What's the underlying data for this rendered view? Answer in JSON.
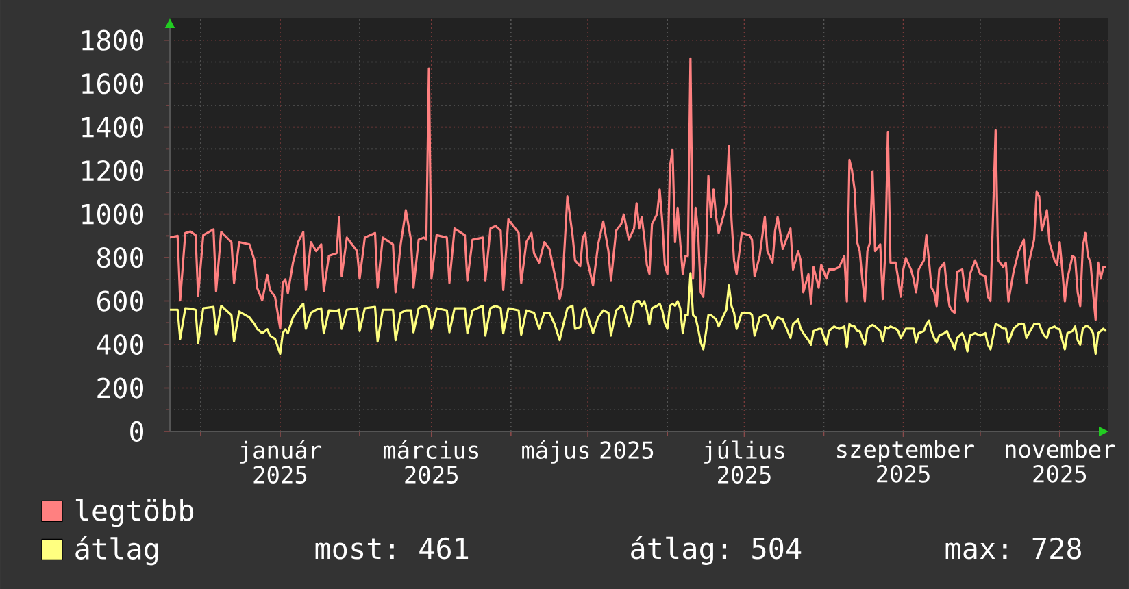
{
  "chart_data": {
    "type": "line",
    "x": [
      "2024-11-19",
      "2024-11-22",
      "2024-11-23",
      "2024-11-25",
      "2024-11-27",
      "2024-11-29",
      "2024-11-30",
      "2024-12-02",
      "2024-12-06",
      "2024-12-07",
      "2024-12-09",
      "2024-12-13",
      "2024-12-14",
      "2024-12-16",
      "2024-12-20",
      "2024-12-22",
      "2024-12-23",
      "2024-12-25",
      "2024-12-27",
      "2024-12-28",
      "2024-12-30",
      "2025-01-01",
      "2025-01-02",
      "2025-01-03",
      "2025-01-04",
      "2025-01-06",
      "2025-01-08",
      "2025-01-10",
      "2025-01-11",
      "2025-01-13",
      "2025-01-15",
      "2025-01-17",
      "2025-01-18",
      "2025-01-20",
      "2025-01-23",
      "2025-01-24",
      "2025-01-25",
      "2025-01-27",
      "2025-01-31",
      "2025-02-01",
      "2025-02-03",
      "2025-02-07",
      "2025-02-08",
      "2025-02-10",
      "2025-02-14",
      "2025-02-15",
      "2025-02-17",
      "2025-02-19",
      "2025-02-21",
      "2025-02-22",
      "2025-02-24",
      "2025-02-26",
      "2025-02-27",
      "2025-02-28",
      "2025-03-01",
      "2025-03-03",
      "2025-03-07",
      "2025-03-08",
      "2025-03-10",
      "2025-03-14",
      "2025-03-15",
      "2025-03-17",
      "2025-03-21",
      "2025-03-22",
      "2025-03-24",
      "2025-03-26",
      "2025-03-28",
      "2025-03-29",
      "2025-03-31",
      "2025-04-04",
      "2025-04-05",
      "2025-04-07",
      "2025-04-09",
      "2025-04-10",
      "2025-04-12",
      "2025-04-14",
      "2025-04-16",
      "2025-04-18",
      "2025-04-20",
      "2025-04-21",
      "2025-04-23",
      "2025-04-25",
      "2025-04-26",
      "2025-04-28",
      "2025-04-29",
      "2025-04-30",
      "2025-05-01",
      "2025-05-03",
      "2025-05-05",
      "2025-05-07",
      "2025-05-09",
      "2025-05-10",
      "2025-05-12",
      "2025-05-14",
      "2025-05-15",
      "2025-05-17",
      "2025-05-18",
      "2025-05-19",
      "2025-05-20",
      "2025-05-21",
      "2025-05-22",
      "2025-05-23",
      "2025-05-24",
      "2025-05-25",
      "2025-05-26",
      "2025-05-28",
      "2025-05-29",
      "2025-05-30",
      "2025-05-31",
      "2025-06-01",
      "2025-06-02",
      "2025-06-03",
      "2025-06-04",
      "2025-06-05",
      "2025-06-06",
      "2025-06-07",
      "2025-06-08",
      "2025-06-09",
      "2025-06-10",
      "2025-06-11",
      "2025-06-12",
      "2025-06-13",
      "2025-06-14",
      "2025-06-15",
      "2025-06-16",
      "2025-06-17",
      "2025-06-18",
      "2025-06-19",
      "2025-06-20",
      "2025-06-21",
      "2025-06-23",
      "2025-06-24",
      "2025-06-25",
      "2025-06-26",
      "2025-06-27",
      "2025-06-28",
      "2025-06-30",
      "2025-07-03",
      "2025-07-04",
      "2025-07-05",
      "2025-07-07",
      "2025-07-09",
      "2025-07-10",
      "2025-07-12",
      "2025-07-13",
      "2025-07-14",
      "2025-07-16",
      "2025-07-19",
      "2025-07-20",
      "2025-07-22",
      "2025-07-23",
      "2025-07-24",
      "2025-07-26",
      "2025-07-27",
      "2025-07-28",
      "2025-07-30",
      "2025-07-31",
      "2025-08-02",
      "2025-08-03",
      "2025-08-05",
      "2025-08-07",
      "2025-08-09",
      "2025-08-10",
      "2025-08-11",
      "2025-08-12",
      "2025-08-13",
      "2025-08-14",
      "2025-08-15",
      "2025-08-16",
      "2025-08-17",
      "2025-08-18",
      "2025-08-19",
      "2025-08-20",
      "2025-08-21",
      "2025-08-23",
      "2025-08-24",
      "2025-08-25",
      "2025-08-26",
      "2025-08-27",
      "2025-08-29",
      "2025-08-30",
      "2025-08-31",
      "2025-09-01",
      "2025-09-02",
      "2025-09-04",
      "2025-09-05",
      "2025-09-06",
      "2025-09-07",
      "2025-09-09",
      "2025-09-10",
      "2025-09-11",
      "2025-09-12",
      "2025-09-13",
      "2025-09-14",
      "2025-09-15",
      "2025-09-17",
      "2025-09-18",
      "2025-09-19",
      "2025-09-20",
      "2025-09-21",
      "2025-09-22",
      "2025-09-24",
      "2025-09-25",
      "2025-09-26",
      "2025-09-27",
      "2025-09-29",
      "2025-10-01",
      "2025-10-03",
      "2025-10-04",
      "2025-10-05",
      "2025-10-07",
      "2025-10-08",
      "2025-10-10",
      "2025-10-11",
      "2025-10-12",
      "2025-10-14",
      "2025-10-16",
      "2025-10-18",
      "2025-10-19",
      "2025-10-20",
      "2025-10-22",
      "2025-10-23",
      "2025-10-24",
      "2025-10-25",
      "2025-10-26",
      "2025-10-27",
      "2025-10-28",
      "2025-10-30",
      "2025-10-31",
      "2025-11-01",
      "2025-11-02",
      "2025-11-03",
      "2025-11-04",
      "2025-11-06",
      "2025-11-07",
      "2025-11-08",
      "2025-11-09",
      "2025-11-10",
      "2025-11-11",
      "2025-11-12",
      "2025-11-13",
      "2025-11-14",
      "2025-11-15",
      "2025-11-16",
      "2025-11-17",
      "2025-11-18",
      "2025-11-19"
    ],
    "series": [
      {
        "name": "legtöbb",
        "color": "#ff8080",
        "values": [
          892,
          900,
          603,
          913,
          920,
          903,
          624,
          903,
          930,
          645,
          918,
          871,
          683,
          871,
          861,
          787,
          661,
          603,
          720,
          651,
          620,
          473,
          683,
          700,
          636,
          777,
          871,
          918,
          651,
          871,
          830,
          861,
          645,
          808,
          820,
          987,
          714,
          892,
          830,
          703,
          892,
          913,
          661,
          892,
          861,
          640,
          861,
          1018,
          882,
          661,
          882,
          892,
          882,
          1670,
          703,
          903,
          892,
          683,
          934,
          903,
          693,
          882,
          892,
          693,
          934,
          945,
          924,
          651,
          976,
          914,
          683,
          871,
          913,
          819,
          777,
          871,
          840,
          725,
          609,
          661,
          1082,
          903,
          787,
          760,
          892,
          913,
          777,
          672,
          861,
          966,
          830,
          693,
          924,
          955,
          998,
          882,
          909,
          933,
          1050,
          934,
          987,
          892,
          767,
          725,
          955,
          1000,
          1113,
          966,
          767,
          725,
          1218,
          1296,
          871,
          1029,
          871,
          725,
          808,
          808,
          1716,
          703,
          1029,
          913,
          640,
          620,
          777,
          1176,
          987,
          1113,
          987,
          913,
          998,
          1050,
          1313,
          976,
          787,
          725,
          913,
          903,
          882,
          714,
          808,
          987,
          830,
          777,
          924,
          987,
          840,
          934,
          745,
          830,
          787,
          640,
          724,
          588,
          756,
          661,
          767,
          703,
          745,
          745,
          756,
          808,
          598,
          1250,
          1200,
          1113,
          871,
          830,
          703,
          598,
          830,
          870,
          1197,
          830,
          861,
          609,
          830,
          1376,
          777,
          777,
          703,
          620,
          745,
          798,
          745,
          703,
          640,
          745,
          787,
          903,
          787,
          661,
          640,
          577,
          745,
          777,
          661,
          577,
          556,
          546,
          735,
          745,
          650,
          598,
          724,
          787,
          724,
          714,
          620,
          600,
          1386,
          788,
          756,
          777,
          598,
          735,
          830,
          882,
          683,
          777,
          882,
          1103,
          1082,
          924,
          966,
          1018,
          871,
          787,
          767,
          871,
          745,
          598,
          703,
          808,
          798,
          640,
          577,
          850,
          913,
          808,
          777,
          640,
          514,
          777,
          703,
          756,
          756
        ]
      },
      {
        "name": "átlag",
        "color": "#ffff80",
        "values": [
          560,
          560,
          426,
          567,
          565,
          560,
          405,
          567,
          573,
          447,
          578,
          535,
          414,
          552,
          525,
          494,
          472,
          452,
          470,
          441,
          426,
          357,
          452,
          470,
          452,
          525,
          560,
          588,
          472,
          546,
          560,
          567,
          452,
          557,
          555,
          560,
          472,
          560,
          567,
          462,
          567,
          573,
          414,
          560,
          560,
          420,
          546,
          557,
          557,
          456,
          567,
          578,
          578,
          560,
          472,
          567,
          557,
          456,
          567,
          567,
          452,
          557,
          578,
          441,
          567,
          578,
          567,
          452,
          567,
          557,
          445,
          557,
          550,
          546,
          472,
          546,
          546,
          494,
          420,
          472,
          567,
          578,
          472,
          480,
          557,
          567,
          530,
          452,
          525,
          557,
          546,
          441,
          557,
          578,
          570,
          483,
          520,
          588,
          599,
          600,
          578,
          599,
          557,
          494,
          567,
          578,
          588,
          557,
          500,
          472,
          578,
          588,
          578,
          599,
          567,
          452,
          535,
          535,
          728,
          536,
          525,
          472,
          410,
          378,
          452,
          536,
          536,
          525,
          515,
          483,
          536,
          560,
          672,
          578,
          546,
          472,
          546,
          546,
          536,
          441,
          525,
          536,
          530,
          472,
          510,
          525,
          515,
          430,
          494,
          515,
          473,
          452,
          420,
          399,
          462,
          472,
          472,
          399,
          462,
          483,
          472,
          483,
          388,
          494,
          483,
          483,
          462,
          462,
          430,
          399,
          473,
          483,
          490,
          483,
          462,
          414,
          480,
          473,
          483,
          473,
          462,
          430,
          452,
          473,
          473,
          473,
          410,
          452,
          462,
          493,
          510,
          462,
          430,
          410,
          441,
          452,
          462,
          430,
          410,
          378,
          430,
          452,
          420,
          368,
          441,
          452,
          441,
          452,
          400,
          378,
          494,
          490,
          473,
          473,
          410,
          473,
          494,
          494,
          430,
          452,
          494,
          494,
          494,
          462,
          441,
          430,
          473,
          483,
          473,
          470,
          420,
          378,
          452,
          462,
          483,
          420,
          399,
          473,
          483,
          483,
          473,
          452,
          357,
          452,
          462,
          473,
          461
        ]
      }
    ],
    "xlim": [
      "2024-11-19",
      "2025-11-20"
    ],
    "xticks": [
      {
        "value": "2024-12-01",
        "label": null
      },
      {
        "value": "2025-01-01",
        "label": "január 2025"
      },
      {
        "value": "2025-02-01",
        "label": null
      },
      {
        "value": "2025-03-01",
        "label": "március 2025"
      },
      {
        "value": "2025-04-01",
        "label": null
      },
      {
        "value": "2025-05-01",
        "label": "május 2025"
      },
      {
        "value": "2025-06-01",
        "label": null
      },
      {
        "value": "2025-07-01",
        "label": "július 2025"
      },
      {
        "value": "2025-08-01",
        "label": null
      },
      {
        "value": "2025-09-01",
        "label": "szeptember 2025"
      },
      {
        "value": "2025-10-01",
        "label": null
      },
      {
        "value": "2025-11-01",
        "label": "november 2025"
      }
    ],
    "ylim": [
      0,
      1900
    ],
    "yticks": [
      0,
      {
        "value": 100,
        "label": null
      },
      200,
      {
        "value": 300,
        "label": null
      },
      400,
      {
        "value": 500,
        "label": null
      },
      600,
      {
        "value": 700,
        "label": null
      },
      800,
      {
        "value": 900,
        "label": null
      },
      1000,
      {
        "value": 1100,
        "label": null
      },
      1200,
      {
        "value": 1300,
        "label": null
      },
      1400,
      {
        "value": 1500,
        "label": null
      },
      1600,
      {
        "value": 1700,
        "label": null
      },
      1800
    ],
    "grid": true,
    "legend": "bottom left",
    "annotations": [
      "most: 461",
      "átlag: 504",
      "max: 728"
    ]
  }
}
